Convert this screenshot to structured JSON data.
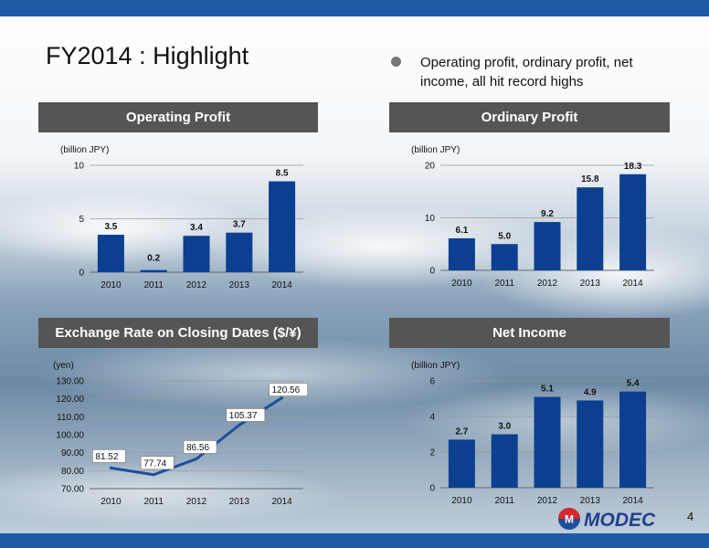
{
  "slide": {
    "title": "FY2014 : Highlight",
    "bullet": "Operating profit, ordinary profit, net income, all hit record highs",
    "page_number": "4",
    "logo_text": "MODEC",
    "logo_mark": "M"
  },
  "colors": {
    "bar": "#0d3f91",
    "line": "#1d4f9c",
    "header": "#555555",
    "band": "#1f5aa6"
  },
  "chart_data": [
    {
      "id": "operating",
      "type": "bar",
      "header": "Operating Profit",
      "unit": "(billion JPY)",
      "categories": [
        "2010",
        "2011",
        "2012",
        "2013",
        "2014"
      ],
      "values": [
        3.5,
        0.2,
        3.4,
        3.7,
        8.5
      ],
      "labels": [
        "3.5",
        "0.2",
        "3.4",
        "3.7",
        "8.5"
      ],
      "ylim": [
        0,
        10
      ],
      "yticks": [
        0,
        5,
        10
      ],
      "ytick_labels": [
        "0",
        "5",
        "10"
      ],
      "grid": true
    },
    {
      "id": "ordinary",
      "type": "bar",
      "header": "Ordinary Profit",
      "unit": "(billion JPY)",
      "categories": [
        "2010",
        "2011",
        "2012",
        "2013",
        "2014"
      ],
      "values": [
        6.1,
        5.0,
        9.2,
        15.8,
        18.3
      ],
      "labels": [
        "6.1",
        "5.0",
        "9.2",
        "15.8",
        "18.3"
      ],
      "ylim": [
        0,
        20
      ],
      "yticks": [
        0,
        10,
        20
      ],
      "ytick_labels": [
        "0",
        "10",
        "20"
      ],
      "grid": true
    },
    {
      "id": "exchange",
      "type": "line",
      "header": "Exchange Rate on Closing Dates ($/¥)",
      "unit": "(yen)",
      "categories": [
        "2010",
        "2011",
        "2012",
        "2013",
        "2014"
      ],
      "values": [
        81.52,
        77.74,
        86.56,
        105.37,
        120.56
      ],
      "labels": [
        "81.52",
        "77.74",
        "86.56",
        "105.37",
        "120.56"
      ],
      "ylim": [
        70,
        130
      ],
      "yticks": [
        70,
        80,
        90,
        100,
        110,
        120,
        130
      ],
      "ytick_labels": [
        "70.00",
        "80.00",
        "90.00",
        "100.00",
        "110.00",
        "120.00",
        "130.00"
      ],
      "grid": true
    },
    {
      "id": "net",
      "type": "bar",
      "header": "Net Income",
      "unit": "(billion JPY)",
      "categories": [
        "2010",
        "2011",
        "2012",
        "2013",
        "2014"
      ],
      "values": [
        2.7,
        3.0,
        5.1,
        4.9,
        5.4
      ],
      "labels": [
        "2.7",
        "3.0",
        "5.1",
        "4.9",
        "5.4"
      ],
      "ylim": [
        0,
        6
      ],
      "yticks": [
        0,
        2,
        4,
        6
      ],
      "ytick_labels": [
        "0",
        "2",
        "4",
        "6"
      ],
      "grid": true
    }
  ]
}
